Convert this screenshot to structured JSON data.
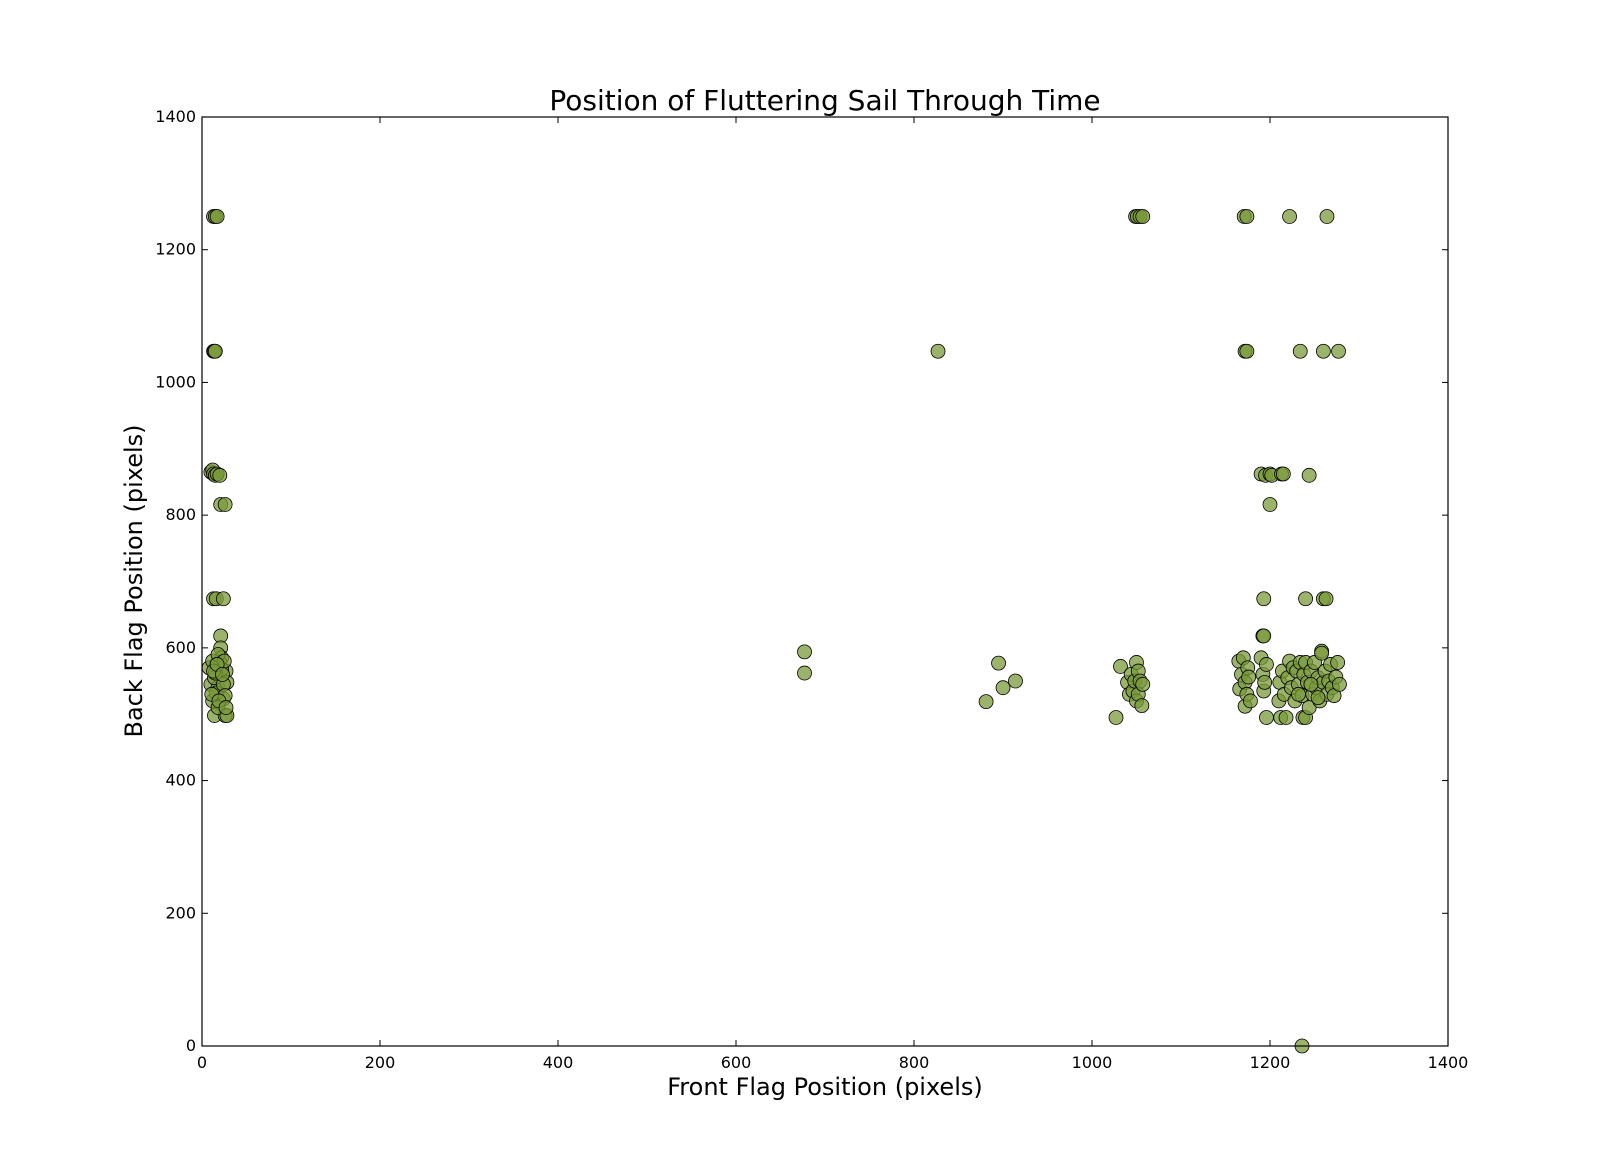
{
  "chart_data": {
    "type": "scatter",
    "title": "Position of Fluttering Sail Through Time",
    "xlabel": "Front Flag Position (pixels)",
    "ylabel": "Back Flag Position (pixels)",
    "xlim": [
      0,
      1400
    ],
    "ylim": [
      0,
      1400
    ],
    "xticks": [
      "0",
      "200",
      "400",
      "600",
      "800",
      "1000",
      "1200",
      "1400"
    ],
    "yticks": [
      "0",
      "200",
      "400",
      "600",
      "800",
      "1000",
      "1200",
      "1400"
    ],
    "grid": false,
    "legend": "none",
    "marker_color": "#7a9a3a",
    "marker_opacity": 0.75,
    "edge_color": "#000000",
    "points": [
      [
        13,
        1250
      ],
      [
        15,
        1250
      ],
      [
        17,
        1250
      ],
      [
        13,
        1047
      ],
      [
        14,
        1047
      ],
      [
        15,
        1047
      ],
      [
        10,
        865
      ],
      [
        12,
        868
      ],
      [
        13,
        862
      ],
      [
        15,
        860
      ],
      [
        17,
        862
      ],
      [
        20,
        860
      ],
      [
        21,
        816
      ],
      [
        26,
        816
      ],
      [
        13,
        674
      ],
      [
        16,
        674
      ],
      [
        24,
        674
      ],
      [
        21,
        618
      ],
      [
        21,
        600
      ],
      [
        8,
        570
      ],
      [
        10,
        545
      ],
      [
        12,
        520
      ],
      [
        14,
        498
      ],
      [
        16,
        575
      ],
      [
        18,
        540
      ],
      [
        20,
        556
      ],
      [
        22,
        585
      ],
      [
        24,
        523
      ],
      [
        26,
        498
      ],
      [
        27,
        565
      ],
      [
        28,
        548
      ],
      [
        14,
        555
      ],
      [
        16,
        532
      ],
      [
        18,
        510
      ],
      [
        20,
        578
      ],
      [
        22,
        568
      ],
      [
        24,
        545
      ],
      [
        26,
        528
      ],
      [
        28,
        498
      ],
      [
        12,
        580
      ],
      [
        15,
        562
      ],
      [
        18,
        590
      ],
      [
        11,
        530
      ],
      [
        25,
        580
      ],
      [
        13,
        565
      ],
      [
        17,
        575
      ],
      [
        19,
        520
      ],
      [
        23,
        560
      ],
      [
        27,
        510
      ],
      [
        677,
        594
      ],
      [
        677,
        562
      ],
      [
        827,
        1047
      ],
      [
        881,
        519
      ],
      [
        895,
        577
      ],
      [
        900,
        540
      ],
      [
        914,
        550
      ],
      [
        1027,
        495
      ],
      [
        1032,
        572
      ],
      [
        1040,
        548
      ],
      [
        1042,
        530
      ],
      [
        1044,
        560
      ],
      [
        1046,
        535
      ],
      [
        1048,
        550
      ],
      [
        1050,
        520
      ],
      [
        1050,
        578
      ],
      [
        1052,
        530
      ],
      [
        1052,
        565
      ],
      [
        1054,
        550
      ],
      [
        1056,
        513
      ],
      [
        1057,
        545
      ],
      [
        1049,
        1250
      ],
      [
        1051,
        1250
      ],
      [
        1054,
        1250
      ],
      [
        1057,
        1250
      ],
      [
        1171,
        1250
      ],
      [
        1174,
        1250
      ],
      [
        1222,
        1250
      ],
      [
        1264,
        1250
      ],
      [
        1172,
        1047
      ],
      [
        1174,
        1047
      ],
      [
        1234,
        1047
      ],
      [
        1260,
        1047
      ],
      [
        1277,
        1047
      ],
      [
        1190,
        862
      ],
      [
        1195,
        860
      ],
      [
        1200,
        862
      ],
      [
        1202,
        860
      ],
      [
        1213,
        862
      ],
      [
        1215,
        862
      ],
      [
        1244,
        860
      ],
      [
        1200,
        816
      ],
      [
        1193,
        674
      ],
      [
        1240,
        674
      ],
      [
        1260,
        674
      ],
      [
        1263,
        674
      ],
      [
        1192,
        618
      ],
      [
        1193,
        618
      ],
      [
        1236,
        0
      ],
      [
        1165,
        580
      ],
      [
        1166,
        538
      ],
      [
        1168,
        560
      ],
      [
        1170,
        585
      ],
      [
        1172,
        512
      ],
      [
        1172,
        548
      ],
      [
        1174,
        530
      ],
      [
        1175,
        570
      ],
      [
        1176,
        556
      ],
      [
        1178,
        520
      ],
      [
        1190,
        585
      ],
      [
        1192,
        560
      ],
      [
        1193,
        535
      ],
      [
        1194,
        548
      ],
      [
        1196,
        495
      ],
      [
        1196,
        575
      ],
      [
        1210,
        520
      ],
      [
        1211,
        548
      ],
      [
        1212,
        495
      ],
      [
        1214,
        565
      ],
      [
        1216,
        530
      ],
      [
        1218,
        495
      ],
      [
        1220,
        555
      ],
      [
        1222,
        580
      ],
      [
        1224,
        540
      ],
      [
        1226,
        570
      ],
      [
        1228,
        520
      ],
      [
        1230,
        565
      ],
      [
        1232,
        545
      ],
      [
        1234,
        578
      ],
      [
        1236,
        528
      ],
      [
        1237,
        495
      ],
      [
        1238,
        560
      ],
      [
        1240,
        578
      ],
      [
        1240,
        495
      ],
      [
        1242,
        548
      ],
      [
        1244,
        510
      ],
      [
        1246,
        565
      ],
      [
        1248,
        530
      ],
      [
        1250,
        578
      ],
      [
        1252,
        540
      ],
      [
        1254,
        555
      ],
      [
        1256,
        520
      ],
      [
        1258,
        595
      ],
      [
        1258,
        592
      ],
      [
        1260,
        548
      ],
      [
        1262,
        565
      ],
      [
        1264,
        530
      ],
      [
        1266,
        550
      ],
      [
        1268,
        575
      ],
      [
        1270,
        540
      ],
      [
        1272,
        528
      ],
      [
        1274,
        556
      ],
      [
        1276,
        578
      ],
      [
        1278,
        545
      ],
      [
        1254,
        525
      ],
      [
        1246,
        545
      ],
      [
        1232,
        530
      ]
    ]
  }
}
